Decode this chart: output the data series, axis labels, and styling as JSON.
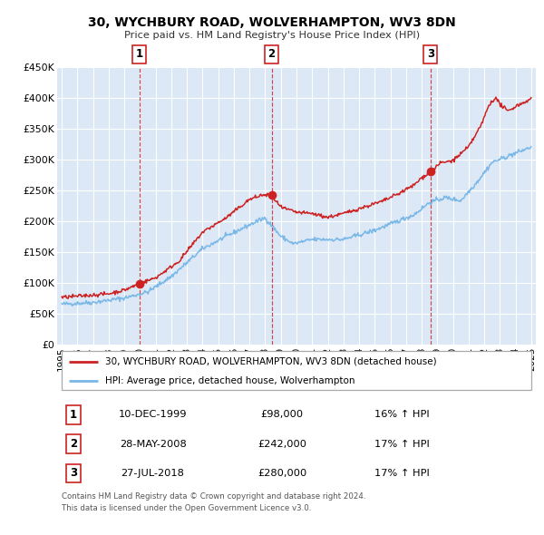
{
  "title_line1": "30, WYCHBURY ROAD, WOLVERHAMPTON, WV3 8DN",
  "title_line2": "Price paid vs. HM Land Registry's House Price Index (HPI)",
  "background_color": "#ffffff",
  "plot_bg_color": "#dce8f5",
  "grid_color": "#ffffff",
  "ylim": [
    0,
    450000
  ],
  "yticks": [
    0,
    50000,
    100000,
    150000,
    200000,
    250000,
    300000,
    350000,
    400000,
    450000
  ],
  "ytick_labels": [
    "£0",
    "£50K",
    "£100K",
    "£150K",
    "£200K",
    "£250K",
    "£300K",
    "£350K",
    "£400K",
    "£450K"
  ],
  "xlim_start": 1994.7,
  "xlim_end": 2025.3,
  "xticks": [
    1995,
    1996,
    1997,
    1998,
    1999,
    2000,
    2001,
    2002,
    2003,
    2004,
    2005,
    2006,
    2007,
    2008,
    2009,
    2010,
    2011,
    2012,
    2013,
    2014,
    2015,
    2016,
    2017,
    2018,
    2019,
    2020,
    2021,
    2022,
    2023,
    2024,
    2025
  ],
  "hpi_color": "#7ab8e8",
  "price_color": "#cc2222",
  "marker_color": "#cc2222",
  "marker_size": 7,
  "sale_points": [
    {
      "year": 1999.95,
      "price": 98000,
      "label": "1"
    },
    {
      "year": 2008.41,
      "price": 242000,
      "label": "2"
    },
    {
      "year": 2018.57,
      "price": 280000,
      "label": "3"
    }
  ],
  "vline_color": "#cc3333",
  "legend_label_price": "30, WYCHBURY ROAD, WOLVERHAMPTON, WV3 8DN (detached house)",
  "legend_label_hpi": "HPI: Average price, detached house, Wolverhampton",
  "table_rows": [
    {
      "num": "1",
      "date": "10-DEC-1999",
      "price": "£98,000",
      "hpi": "16% ↑ HPI"
    },
    {
      "num": "2",
      "date": "28-MAY-2008",
      "price": "£242,000",
      "hpi": "17% ↑ HPI"
    },
    {
      "num": "3",
      "date": "27-JUL-2018",
      "price": "£280,000",
      "hpi": "17% ↑ HPI"
    }
  ],
  "footer_text": "Contains HM Land Registry data © Crown copyright and database right 2024.\nThis data is licensed under the Open Government Licence v3.0."
}
